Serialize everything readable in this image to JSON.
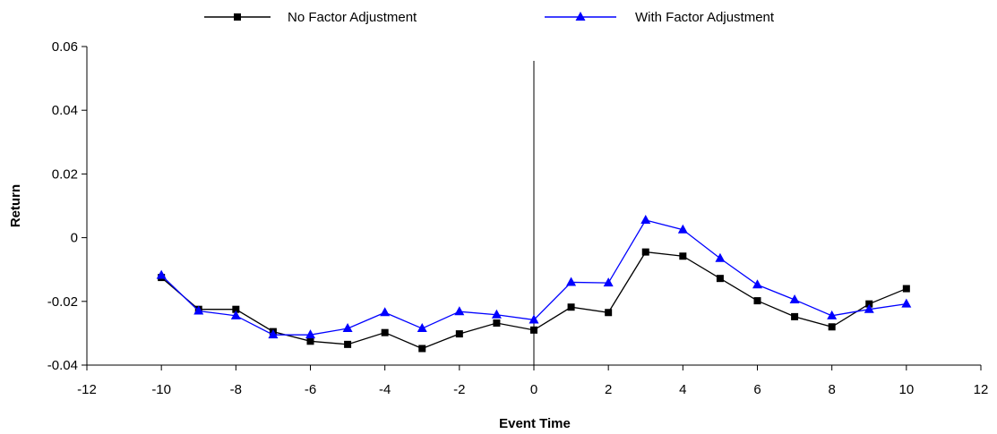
{
  "chart_data": {
    "type": "line",
    "title": "",
    "xlabel": "Event Time",
    "ylabel": "Return",
    "xlim": [
      -12,
      12
    ],
    "ylim": [
      -0.04,
      0.06
    ],
    "xticks": [
      -12,
      -10,
      -8,
      -6,
      -4,
      -2,
      0,
      2,
      4,
      6,
      8,
      10,
      12
    ],
    "yticks": [
      -0.04,
      -0.02,
      0,
      0.02,
      0.04,
      0.06
    ],
    "xtick_labels": [
      "-12",
      "-10",
      "-8",
      "-6",
      "-4",
      "-2",
      "0",
      "2",
      "4",
      "6",
      "8",
      "10",
      "12"
    ],
    "ytick_labels": [
      "-0.04",
      "-0.02",
      "0",
      "0.02",
      "0.04",
      "0.06"
    ],
    "grid": false,
    "legend_position": "top-center",
    "reference_line": {
      "x": 0
    },
    "x": [
      -10,
      -9,
      -8,
      -7,
      -6,
      -5,
      -4,
      -3,
      -2,
      -1,
      0,
      1,
      2,
      3,
      4,
      5,
      6,
      7,
      8,
      9,
      10
    ],
    "series": [
      {
        "name": "No Factor Adjustment",
        "color": "#000000",
        "marker": "square",
        "values": [
          -0.0125,
          -0.0225,
          -0.0225,
          -0.0295,
          -0.0325,
          -0.0335,
          -0.0298,
          -0.0348,
          -0.0302,
          -0.0268,
          -0.029,
          -0.0218,
          -0.0235,
          -0.0045,
          -0.0058,
          -0.0128,
          -0.0198,
          -0.0248,
          -0.028,
          -0.0208,
          -0.016
        ]
      },
      {
        "name": "With Factor Adjustment",
        "color": "#0000ff",
        "marker": "triangle",
        "values": [
          -0.0118,
          -0.023,
          -0.0245,
          -0.0305,
          -0.0305,
          -0.0285,
          -0.0235,
          -0.0285,
          -0.0232,
          -0.0242,
          -0.0258,
          -0.014,
          -0.0142,
          0.0055,
          0.0025,
          -0.0065,
          -0.0148,
          -0.0195,
          -0.0245,
          -0.0225,
          -0.0208
        ]
      }
    ]
  }
}
